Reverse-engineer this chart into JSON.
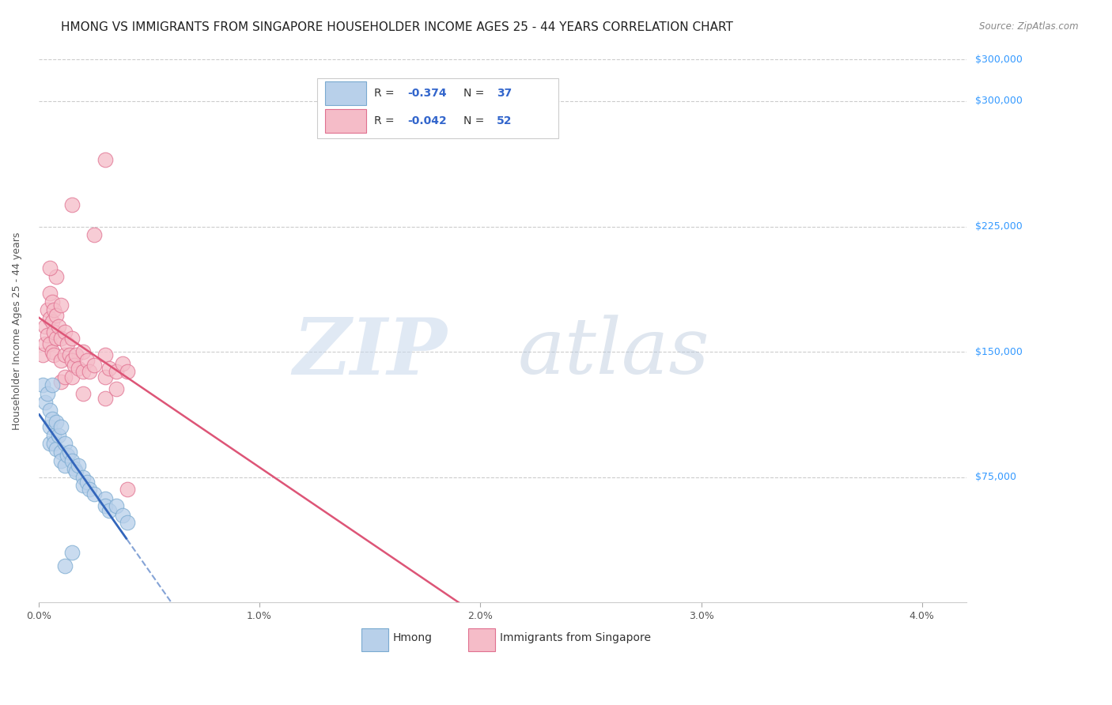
{
  "title": "HMONG VS IMMIGRANTS FROM SINGAPORE HOUSEHOLDER INCOME AGES 25 - 44 YEARS CORRELATION CHART",
  "source": "Source: ZipAtlas.com",
  "ylabel": "Householder Income Ages 25 - 44 years",
  "y_tick_labels": [
    "$75,000",
    "$150,000",
    "$225,000",
    "$300,000"
  ],
  "y_tick_values": [
    75000,
    150000,
    225000,
    300000
  ],
  "ylim": [
    0,
    325000
  ],
  "xlim": [
    0.0,
    0.042
  ],
  "hmong_color": "#b8d0ea",
  "hmong_edge_color": "#7aaad0",
  "singapore_color": "#f5bcc8",
  "singapore_edge_color": "#e07090",
  "hmong_line_color": "#3366bb",
  "singapore_line_color": "#dd5577",
  "background_color": "#ffffff",
  "grid_color": "#cccccc",
  "title_fontsize": 11,
  "axis_label_fontsize": 9,
  "tick_label_fontsize": 9,
  "hmong_r": -0.374,
  "hmong_n": 37,
  "singapore_r": -0.042,
  "singapore_n": 52,
  "hmong_points": [
    [
      0.0002,
      130000
    ],
    [
      0.0003,
      120000
    ],
    [
      0.0004,
      125000
    ],
    [
      0.0005,
      115000
    ],
    [
      0.0005,
      105000
    ],
    [
      0.0005,
      95000
    ],
    [
      0.0006,
      130000
    ],
    [
      0.0006,
      110000
    ],
    [
      0.0007,
      100000
    ],
    [
      0.0007,
      95000
    ],
    [
      0.0008,
      108000
    ],
    [
      0.0008,
      92000
    ],
    [
      0.0009,
      100000
    ],
    [
      0.001,
      105000
    ],
    [
      0.001,
      90000
    ],
    [
      0.001,
      85000
    ],
    [
      0.0012,
      95000
    ],
    [
      0.0012,
      82000
    ],
    [
      0.0013,
      88000
    ],
    [
      0.0014,
      90000
    ],
    [
      0.0015,
      85000
    ],
    [
      0.0016,
      80000
    ],
    [
      0.0017,
      78000
    ],
    [
      0.0018,
      82000
    ],
    [
      0.002,
      75000
    ],
    [
      0.002,
      70000
    ],
    [
      0.0022,
      72000
    ],
    [
      0.0023,
      68000
    ],
    [
      0.0025,
      65000
    ],
    [
      0.003,
      62000
    ],
    [
      0.003,
      58000
    ],
    [
      0.0032,
      55000
    ],
    [
      0.0035,
      58000
    ],
    [
      0.0038,
      52000
    ],
    [
      0.004,
      48000
    ],
    [
      0.0015,
      30000
    ],
    [
      0.0012,
      22000
    ]
  ],
  "singapore_points": [
    [
      0.0002,
      148000
    ],
    [
      0.0003,
      165000
    ],
    [
      0.0003,
      155000
    ],
    [
      0.0004,
      175000
    ],
    [
      0.0004,
      160000
    ],
    [
      0.0005,
      185000
    ],
    [
      0.0005,
      170000
    ],
    [
      0.0005,
      155000
    ],
    [
      0.0006,
      180000
    ],
    [
      0.0006,
      168000
    ],
    [
      0.0006,
      150000
    ],
    [
      0.0007,
      175000
    ],
    [
      0.0007,
      162000
    ],
    [
      0.0007,
      148000
    ],
    [
      0.0008,
      195000
    ],
    [
      0.0008,
      172000
    ],
    [
      0.0008,
      158000
    ],
    [
      0.0009,
      165000
    ],
    [
      0.001,
      178000
    ],
    [
      0.001,
      158000
    ],
    [
      0.001,
      145000
    ],
    [
      0.001,
      132000
    ],
    [
      0.0012,
      162000
    ],
    [
      0.0012,
      148000
    ],
    [
      0.0012,
      135000
    ],
    [
      0.0013,
      155000
    ],
    [
      0.0014,
      148000
    ],
    [
      0.0015,
      158000
    ],
    [
      0.0015,
      145000
    ],
    [
      0.0015,
      135000
    ],
    [
      0.0016,
      142000
    ],
    [
      0.0017,
      148000
    ],
    [
      0.0018,
      140000
    ],
    [
      0.002,
      150000
    ],
    [
      0.002,
      138000
    ],
    [
      0.002,
      125000
    ],
    [
      0.0022,
      145000
    ],
    [
      0.0023,
      138000
    ],
    [
      0.0025,
      142000
    ],
    [
      0.003,
      148000
    ],
    [
      0.003,
      135000
    ],
    [
      0.003,
      122000
    ],
    [
      0.0032,
      140000
    ],
    [
      0.0035,
      138000
    ],
    [
      0.0035,
      128000
    ],
    [
      0.0038,
      143000
    ],
    [
      0.004,
      138000
    ],
    [
      0.004,
      68000
    ],
    [
      0.0025,
      220000
    ],
    [
      0.003,
      265000
    ],
    [
      0.0005,
      200000
    ],
    [
      0.0015,
      238000
    ]
  ]
}
